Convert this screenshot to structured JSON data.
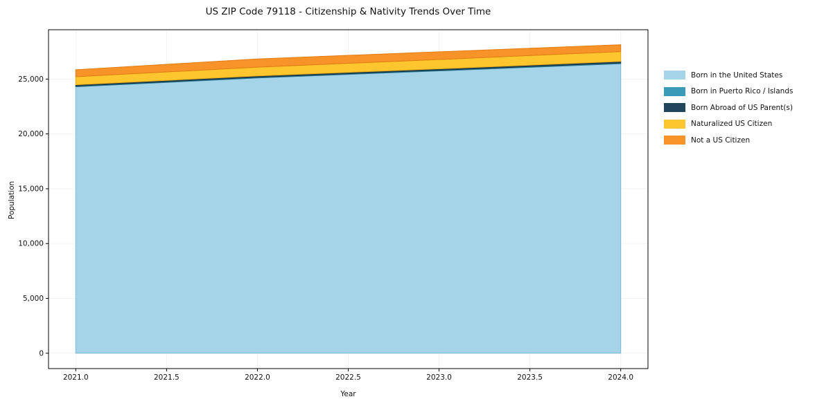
{
  "chart_data": {
    "type": "area",
    "stacked": true,
    "title": "US ZIP Code 79118 - Citizenship & Nativity Trends Over Time",
    "xlabel": "Year",
    "ylabel": "Population",
    "x": [
      2021,
      2022,
      2023,
      2024
    ],
    "series": [
      {
        "name": "Born in the United States",
        "color": "#a5d3e8",
        "edge": "#7db8d6",
        "values": [
          24300,
          25100,
          25750,
          26400
        ]
      },
      {
        "name": "Born in Puerto Rico / Islands",
        "color": "#3b9ab8",
        "edge": "#2d7f9c",
        "values": [
          60,
          60,
          60,
          70
        ]
      },
      {
        "name": "Born Abroad of US Parent(s)",
        "color": "#21455a",
        "edge": "#183544",
        "values": [
          120,
          130,
          130,
          140
        ]
      },
      {
        "name": "Naturalized US Citizen",
        "color": "#fdc62e",
        "edge": "#e8ac14",
        "values": [
          730,
          800,
          850,
          900
        ]
      },
      {
        "name": "Not a US Citizen",
        "color": "#f79329",
        "edge": "#e07c14",
        "values": [
          640,
          750,
          700,
          620
        ]
      }
    ],
    "xlim": [
      2020.85,
      2024.15
    ],
    "ylim": [
      -1400,
      29500
    ],
    "xticks": {
      "values": [
        2021.0,
        2021.5,
        2022.0,
        2022.5,
        2023.0,
        2023.5,
        2024.0
      ],
      "labels": [
        "2021.0",
        "2021.5",
        "2022.0",
        "2022.5",
        "2023.0",
        "2023.5",
        "2024.0"
      ]
    },
    "yticks": {
      "values": [
        0,
        5000,
        10000,
        15000,
        20000,
        25000
      ],
      "labels": [
        "0",
        "5,000",
        "10,000",
        "15,000",
        "20,000",
        "25,000"
      ]
    },
    "grid": true,
    "legend_position": "right"
  }
}
